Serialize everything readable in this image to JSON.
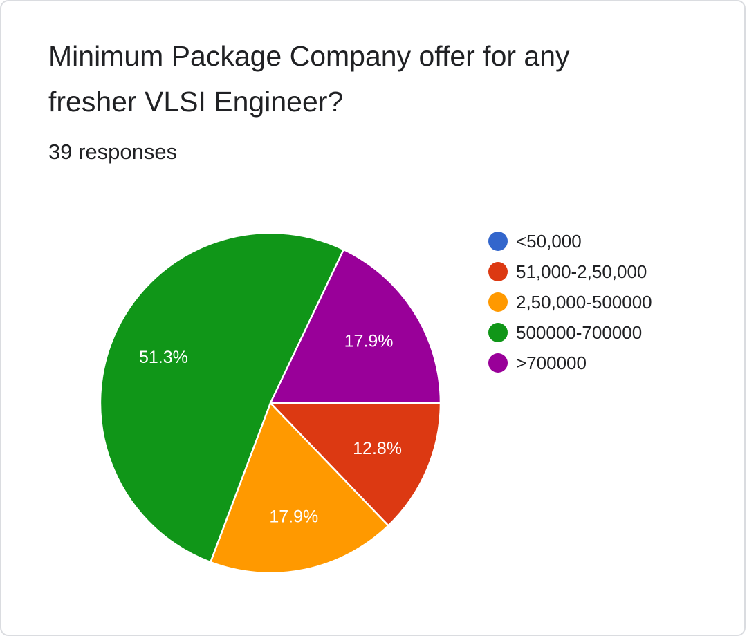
{
  "card": {
    "title": "Minimum Package Company offer for any fresher VLSI Engineer?",
    "responses": "39 responses"
  },
  "chart_data": {
    "type": "pie",
    "categories": [
      "<50,000",
      "51,000-2,50,000",
      "2,50,000-500000",
      "500000-700000",
      ">700000"
    ],
    "values": [
      0,
      12.8,
      17.9,
      51.3,
      17.9
    ],
    "labels": [
      "",
      "12.8%",
      "17.9%",
      "51.3%",
      "17.9%"
    ],
    "colors": [
      "#3366cc",
      "#dc3912",
      "#ff9900",
      "#109618",
      "#990099"
    ],
    "legend_position": "right",
    "start": "3 o'clock",
    "direction": "clockwise"
  }
}
